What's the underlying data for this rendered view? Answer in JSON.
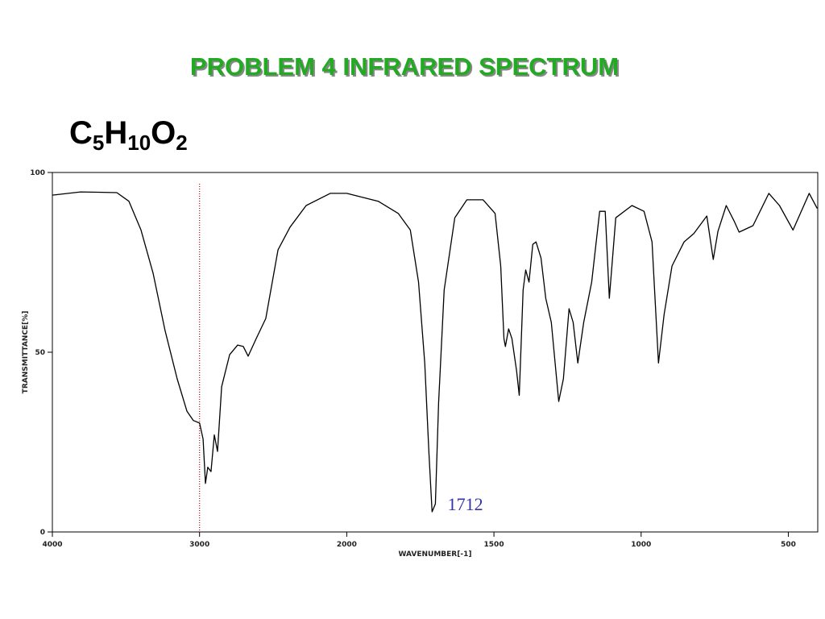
{
  "chart_data": {
    "type": "line",
    "title": "PROBLEM  4   INFRARED SPECTRUM",
    "formula": [
      "C",
      "5",
      "H",
      "10",
      "O",
      "2"
    ],
    "x_label": "WAVENUMBER[-1]",
    "y_label": "TRANSMITTANCE[%]",
    "xlim": [
      4000,
      400
    ],
    "x_break": {
      "at": 2000,
      "factor": 2
    },
    "xticks": [
      4000,
      3000,
      2000,
      1500,
      1000,
      500
    ],
    "ylim": [
      0,
      100
    ],
    "yticks": [
      0,
      50,
      100
    ],
    "reference_line": {
      "x": 3000,
      "color": "#cc0000"
    },
    "annotations": [
      {
        "x": 1712,
        "text": "1712",
        "color": "#3333aa"
      }
    ],
    "series": [
      {
        "name": "spectrum",
        "color": "#000000",
        "x": [
          4000,
          3808,
          3562,
          3480,
          3398,
          3316,
          3234,
          3152,
          3086,
          3042,
          3000,
          2976,
          2960,
          2944,
          2922,
          2900,
          2878,
          2850,
          2796,
          2741,
          2703,
          2670,
          2615,
          2550,
          2467,
          2385,
          2276,
          2112,
          2000,
          1893,
          1825,
          1784,
          1756,
          1735,
          1721,
          1710,
          1699,
          1688,
          1669,
          1633,
          1592,
          1537,
          1496,
          1477,
          1466,
          1461,
          1450,
          1439,
          1423,
          1414,
          1401,
          1392,
          1381,
          1368,
          1357,
          1340,
          1324,
          1305,
          1280,
          1264,
          1245,
          1231,
          1215,
          1195,
          1168,
          1141,
          1122,
          1108,
          1086,
          1031,
          990,
          963,
          941,
          922,
          895,
          854,
          821,
          777,
          755,
          739,
          711,
          683,
          667,
          620,
          566,
          530,
          484,
          429,
          402
        ],
        "values": [
          93.7,
          94.6,
          94.4,
          92,
          84,
          72,
          56,
          42.6,
          33.6,
          31,
          30.3,
          25.8,
          13.5,
          18,
          16.8,
          27,
          22.4,
          40.4,
          49.3,
          52,
          51.6,
          48.9,
          53.8,
          59.4,
          78.5,
          84.8,
          90.8,
          94.2,
          94.2,
          92,
          88.6,
          84,
          69.5,
          47,
          22.4,
          5.6,
          7.8,
          35.9,
          67.3,
          87.4,
          92.4,
          92.4,
          88.6,
          74,
          53.8,
          51.6,
          56.5,
          53.8,
          44.8,
          38,
          67.3,
          72.9,
          69.5,
          80,
          80.7,
          76.2,
          65,
          58.3,
          36.3,
          42.6,
          62.1,
          58.3,
          47,
          58.3,
          69.5,
          89.2,
          89.2,
          65,
          87.4,
          90.8,
          89.2,
          80.7,
          47,
          60.5,
          74,
          80.7,
          83,
          87.9,
          75.8,
          83.6,
          90.8,
          86.3,
          83.4,
          85.2,
          94.2,
          90.8,
          84,
          94.2,
          90
        ]
      }
    ]
  }
}
